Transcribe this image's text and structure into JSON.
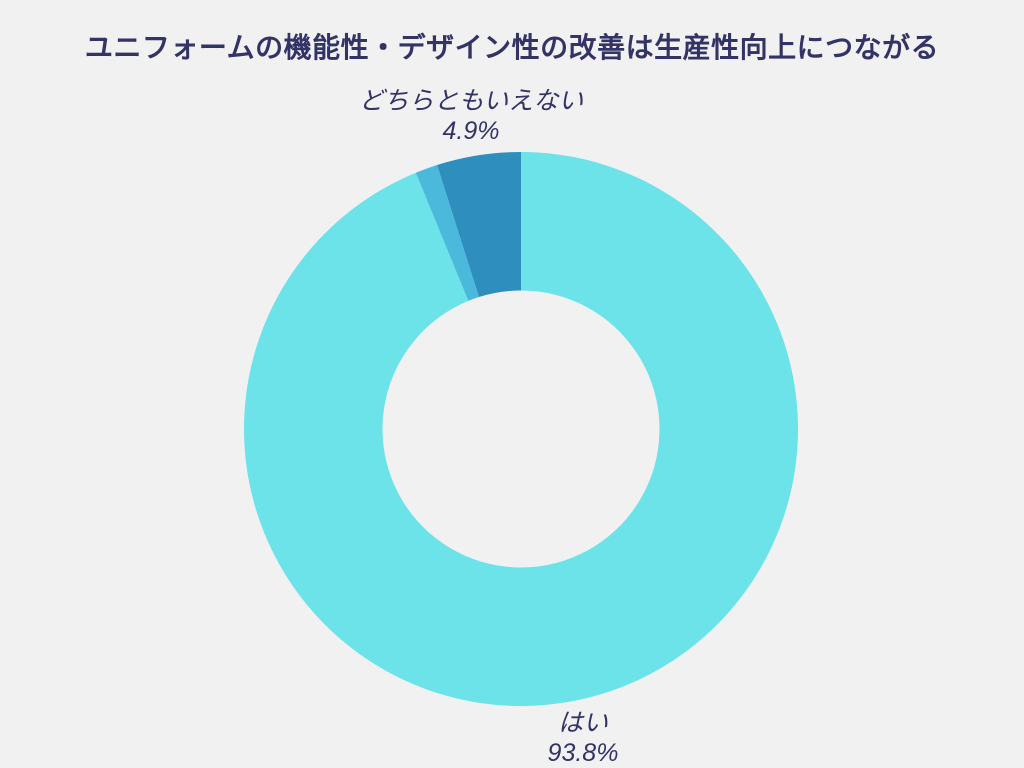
{
  "page": {
    "background_color": "#F1F1F2",
    "text_color": "#333366"
  },
  "title": {
    "text": "ユニフォームの機能性・デザイン性の改善は生産性向上につながる"
  },
  "chart_data": {
    "type": "pie",
    "subtype": "donut",
    "title": "ユニフォームの機能性・デザイン性の改善は生産性向上につながる",
    "start_angle_deg": 0,
    "direction": "clockwise",
    "inner_radius_ratio": 0.5,
    "legend": "none",
    "label_color": "#333366",
    "segments": [
      {
        "label": "はい",
        "value": 93.8,
        "display": "93.8%",
        "color": "#6CE3E8",
        "label_visible": true
      },
      {
        "label": "",
        "value": 1.3,
        "display": "",
        "color": "#4BB9DB",
        "label_visible": false
      },
      {
        "label": "どちらともいえない",
        "value": 4.9,
        "display": "4.9%",
        "color": "#2E8FBF",
        "label_visible": true
      }
    ]
  },
  "labels": {
    "top": {
      "name": "どちらともいえない",
      "pct": "4.9%"
    },
    "bottom": {
      "name": "はい",
      "pct": "93.8%"
    }
  }
}
